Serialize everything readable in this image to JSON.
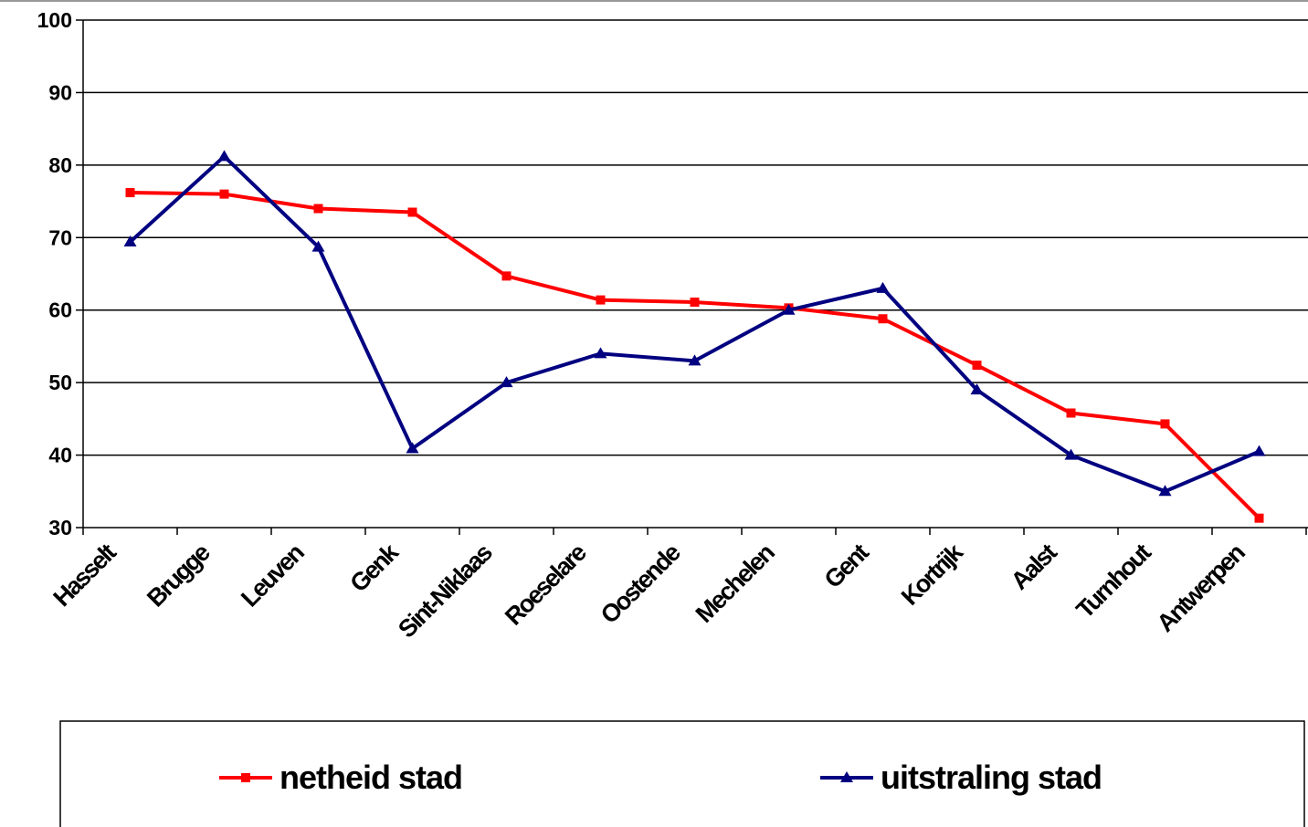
{
  "chart_data": {
    "type": "line",
    "categories": [
      "Hasselt",
      "Brugge",
      "Leuven",
      "Genk",
      "Sint-Niklaas",
      "Roeselare",
      "Oostende",
      "Mechelen",
      "Gent",
      "Kortrijk",
      "Aalst",
      "Turnhout",
      "Antwerpen"
    ],
    "series": [
      {
        "name": "netheid stad",
        "color": "#ff0000",
        "marker": "square",
        "values": [
          76.2,
          76,
          74,
          73.5,
          64.7,
          61.4,
          61.1,
          60.3,
          58.8,
          52.4,
          45.8,
          44.3,
          31.3
        ]
      },
      {
        "name": "uitstraling stad",
        "color": "#000080",
        "marker": "triangle",
        "values": [
          69.4,
          81.2,
          68.7,
          40.9,
          50,
          54,
          53,
          60,
          63,
          49,
          40,
          35,
          40.5
        ]
      }
    ],
    "ylim": [
      30,
      100
    ],
    "yticks": [
      30,
      40,
      50,
      60,
      70,
      80,
      90,
      100
    ],
    "grid": true,
    "legend": "bottom"
  }
}
